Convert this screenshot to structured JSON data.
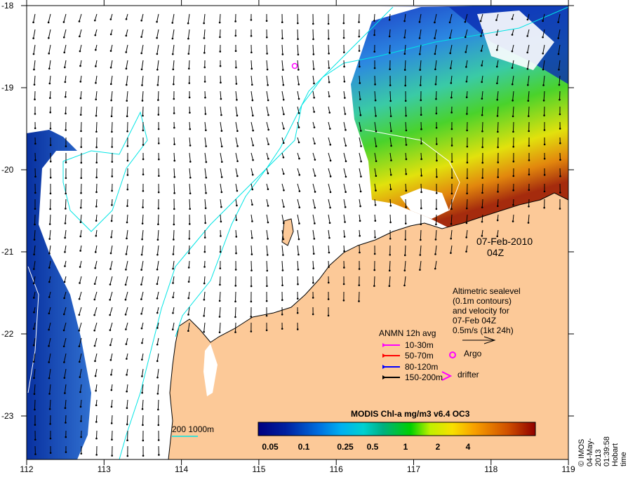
{
  "map": {
    "date_label": "07-Feb-2010",
    "time_label": "04Z",
    "lon_ticks": [
      "112",
      "113",
      "114",
      "115",
      "116",
      "117",
      "118",
      "119"
    ],
    "lat_ticks": [
      "-18",
      "-19",
      "-20",
      "-21",
      "-22",
      "-23"
    ],
    "credit": "© IMOS 04-May-2013 01:39:58 Hobart time",
    "colors": {
      "land": "#FCC998",
      "isobath": "#00E5E5",
      "argo": "#FF00FF"
    }
  },
  "altimetry": {
    "lines": [
      "Altimetric sealevel",
      "(0.1m contours)",
      "and velocity for",
      "07-Feb 04Z",
      "0.5m/s (1kt 24h)"
    ]
  },
  "anmn": {
    "title": "ANMN 12h avg",
    "items": [
      {
        "label": "10-30m",
        "color": "#FF00FF"
      },
      {
        "label": "50-70m",
        "color": "#FF0000"
      },
      {
        "label": "80-120m",
        "color": "#0000FF"
      },
      {
        "label": "150-200m",
        "color": "#000000"
      }
    ]
  },
  "markers": {
    "argo": "Argo",
    "drifter": "drifter"
  },
  "isobath_legend": "200  1000m",
  "colorbar": {
    "title": "MODIS Chl-a mg/m3 v6.4 OC3",
    "ticks": [
      "0.05",
      "0.1",
      "0.25",
      "0.5",
      "1",
      "2",
      "4"
    ]
  }
}
